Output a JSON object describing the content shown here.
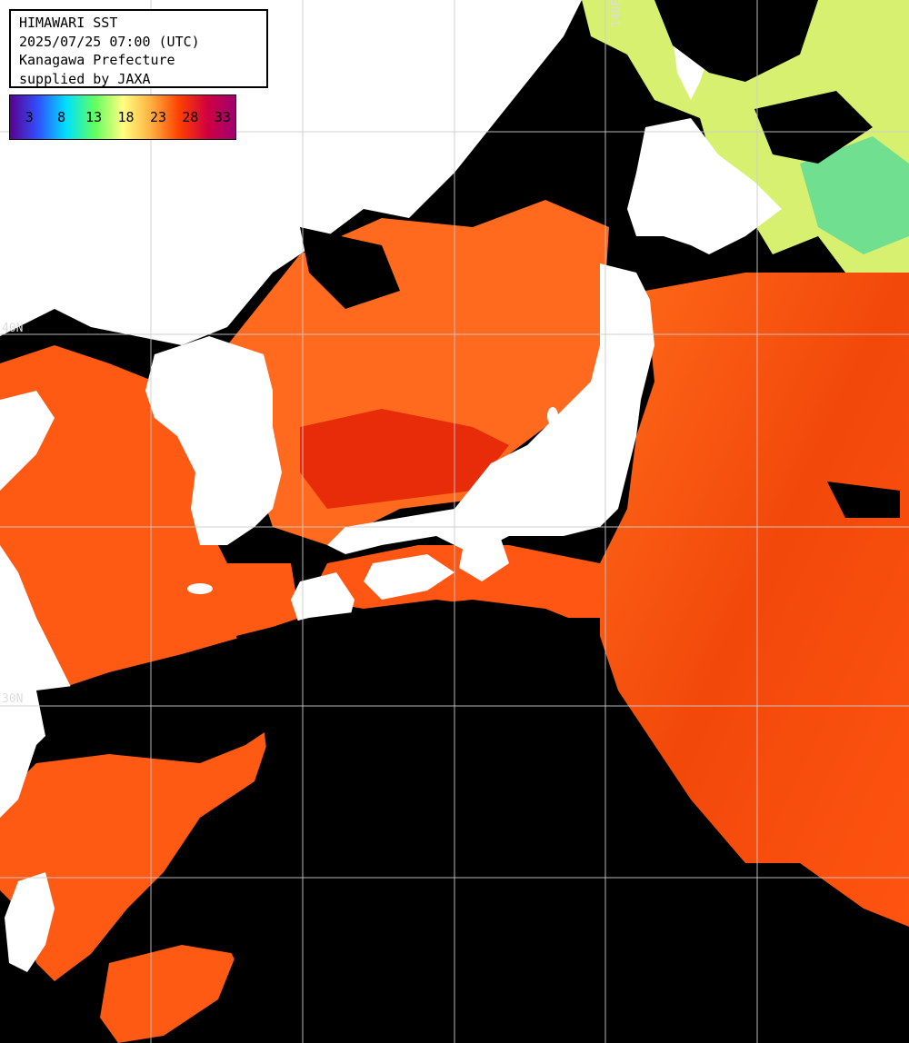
{
  "header": {
    "line1": "HIMAWARI SST",
    "line2": "2025/07/25 07:00 (UTC)",
    "line3": "Kanagawa Prefecture",
    "line4": "supplied by JAXA"
  },
  "legend": {
    "ticks": [
      "3",
      "8",
      "13",
      "18",
      "23",
      "28",
      "33"
    ],
    "tick_values": [
      3,
      8,
      13,
      18,
      23,
      28,
      33
    ],
    "range": [
      0,
      35
    ],
    "unit_hint": "",
    "colors": [
      "#5a0090",
      "#3050ff",
      "#00e0ff",
      "#60ff60",
      "#ffff80",
      "#ffb040",
      "#ff4000",
      "#d00040",
      "#a00070"
    ]
  },
  "grid": {
    "lat_labels": [
      "40N",
      "30N"
    ],
    "lon_labels": [
      "140E"
    ]
  },
  "colors": {
    "ocean_sst": "#ff4a0a",
    "land": "#ffffff",
    "cloud": "#000000",
    "gridline": "#cccccc"
  }
}
